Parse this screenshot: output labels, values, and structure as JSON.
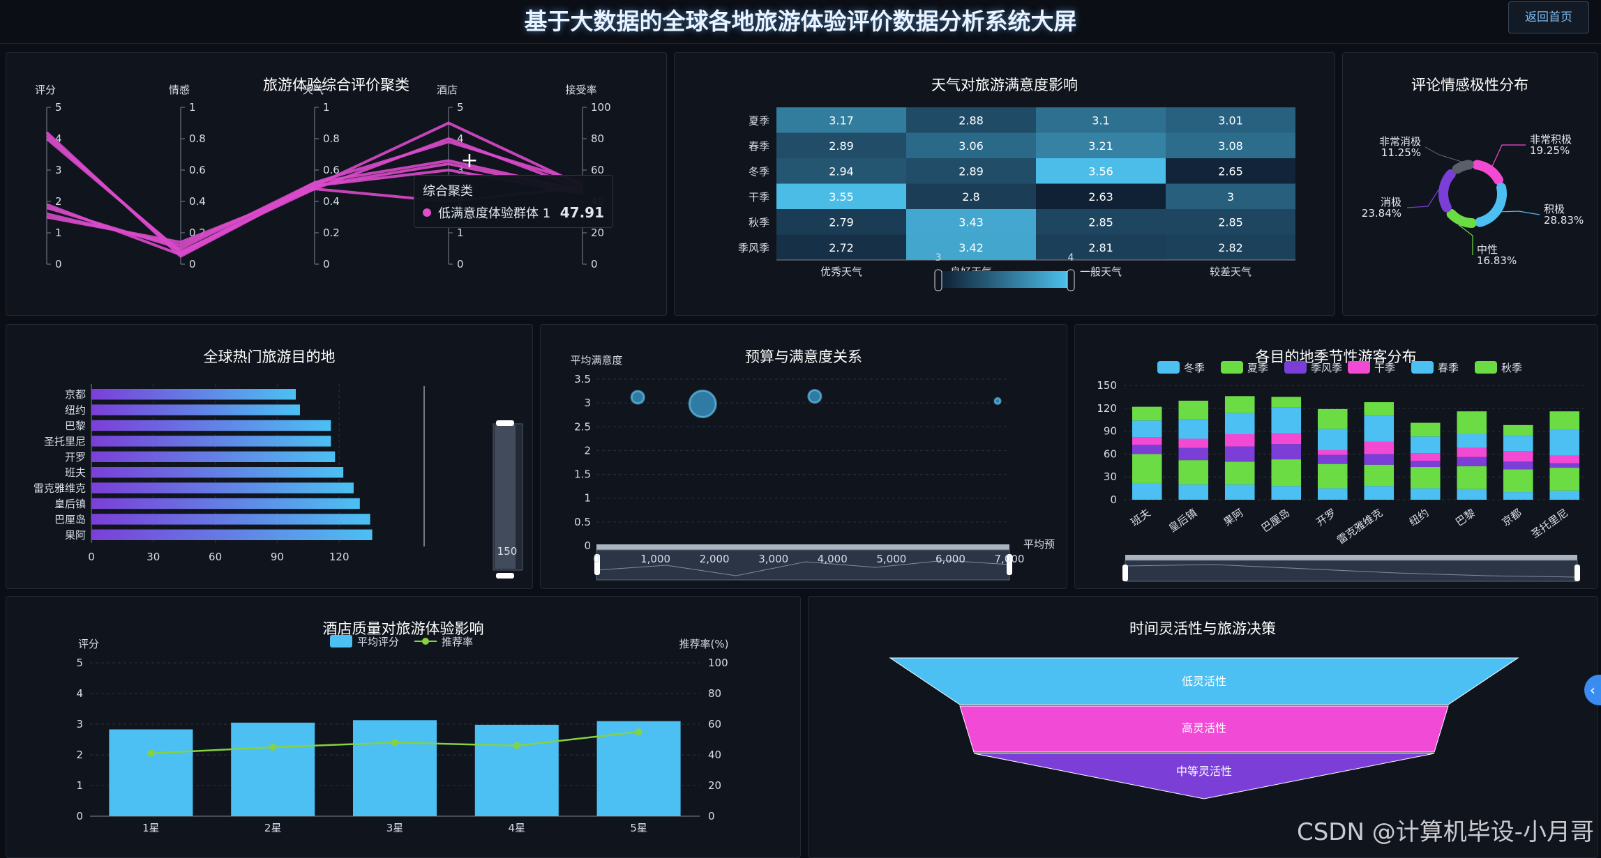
{
  "header": {
    "title": "基于大数据的全球各地旅游体验评价数据分析系统大屏",
    "back_label": "返回首页"
  },
  "watermark": "CSDN @计算机毕设-小月哥",
  "colors": {
    "cyan": "#4cc0f2",
    "green": "#6cdc45",
    "purple": "#7b3fd8",
    "pink": "#f24ad3",
    "bg": "#10141c"
  },
  "panels": {
    "parallel": {
      "title": "旅游体验综合评价聚类",
      "tooltip": {
        "title": "综合聚类",
        "name": "低满意度体验群体 1",
        "value": "47.91"
      },
      "chart_data": {
        "type": "parallel",
        "axes": [
          {
            "name": "评分",
            "min": 0,
            "max": 5,
            "ticks": [
              "0",
              "1",
              "2",
              "3",
              "4",
              "5"
            ]
          },
          {
            "name": "情感",
            "min": 0,
            "max": 1,
            "ticks": [
              "0",
              "0.2",
              "0.4",
              "0.6",
              "0.8",
              "1"
            ]
          },
          {
            "name": "天气",
            "min": 0,
            "max": 1,
            "ticks": [
              "0",
              "0.2",
              "0.4",
              "0.6",
              "0.8",
              "1"
            ]
          },
          {
            "name": "酒店",
            "min": 0,
            "max": 5,
            "ticks": [
              "0",
              "1",
              "2",
              "3",
              "4",
              "5"
            ]
          },
          {
            "name": "接受率",
            "min": 0,
            "max": 100,
            "ticks": [
              "0",
              "20",
              "40",
              "60",
              "80",
              "100"
            ]
          }
        ],
        "lines": [
          [
            4.2,
            0.05,
            0.5,
            4.5,
            50
          ],
          [
            4.1,
            0.07,
            0.52,
            3.9,
            52
          ],
          [
            4.0,
            0.08,
            0.48,
            4.0,
            48
          ],
          [
            1.8,
            0.1,
            0.52,
            3.3,
            47
          ],
          [
            1.6,
            0.12,
            0.5,
            3.2,
            46
          ],
          [
            1.5,
            0.14,
            0.48,
            2.0,
            49
          ],
          [
            1.9,
            0.06,
            0.5,
            3.0,
            45
          ]
        ]
      }
    },
    "heatmap": {
      "title": "天气对旅游满意度影响",
      "visual_map": {
        "min_label": "3",
        "max_label": "4"
      },
      "chart_data": {
        "type": "heatmap",
        "x": [
          "优秀天气",
          "良好天气",
          "一般天气",
          "较差天气"
        ],
        "y": [
          "夏季",
          "春季",
          "冬季",
          "干季",
          "秋季",
          "季风季"
        ],
        "values": [
          [
            3.17,
            2.88,
            3.1,
            3.01
          ],
          [
            2.89,
            3.06,
            3.21,
            3.08
          ],
          [
            2.94,
            2.89,
            3.56,
            2.65
          ],
          [
            3.55,
            2.8,
            2.63,
            3
          ],
          [
            2.79,
            3.43,
            2.85,
            2.85
          ],
          [
            2.72,
            3.42,
            2.81,
            2.82
          ]
        ]
      }
    },
    "donut": {
      "title": "评论情感极性分布",
      "chart_data": {
        "type": "pie",
        "slices": [
          {
            "name": "非常积极",
            "percent": "19.25%",
            "value": 19.25,
            "color": "#f24ad3"
          },
          {
            "name": "积极",
            "percent": "28.83%",
            "value": 28.83,
            "color": "#4cc0f2"
          },
          {
            "name": "中性",
            "percent": "16.83%",
            "value": 16.83,
            "color": "#6cdc45"
          },
          {
            "name": "消极",
            "percent": "23.84%",
            "value": 23.84,
            "color": "#7b3fd8"
          },
          {
            "name": "非常消极",
            "percent": "11.25%",
            "value": 11.25,
            "color": "#5a5f69"
          }
        ]
      }
    },
    "hotbar": {
      "title": "全球热门旅游目的地",
      "slider_label": "150",
      "chart_data": {
        "type": "bar",
        "categories": [
          "京都",
          "纽约",
          "巴黎",
          "圣托里尼",
          "开罗",
          "班夫",
          "雷克雅维克",
          "皇后镇",
          "巴厘岛",
          "果阿"
        ],
        "values": [
          99,
          101,
          116,
          116,
          118,
          122,
          127,
          130,
          135,
          136
        ],
        "xlim": [
          0,
          150
        ],
        "xticks": [
          "0",
          "30",
          "60",
          "90",
          "120"
        ]
      }
    },
    "scatter": {
      "title": "预算与满意度关系",
      "chart_data": {
        "type": "scatter",
        "ylabel": "平均满意度",
        "xlabel": "平均预",
        "yticks": [
          "0",
          "0.5",
          "1",
          "1.5",
          "2",
          "2.5",
          "3",
          "3.5"
        ],
        "xticks": [
          "0",
          "1,000",
          "2,000",
          "3,000",
          "4,000",
          "5,000",
          "6,000",
          "7,000"
        ],
        "xlim": [
          0,
          7000
        ],
        "ylim": [
          0,
          3.5
        ],
        "points": [
          {
            "x": 700,
            "y": 3.12,
            "size": 9
          },
          {
            "x": 1800,
            "y": 2.98,
            "size": 19
          },
          {
            "x": 3700,
            "y": 3.14,
            "size": 9
          },
          {
            "x": 6800,
            "y": 3.04,
            "size": 4
          }
        ]
      }
    },
    "stacked": {
      "title": "各目的地季节性游客分布",
      "chart_data": {
        "type": "bar",
        "stacked": true,
        "categories": [
          "班夫",
          "皇后镇",
          "果阿",
          "巴厘岛",
          "开罗",
          "雷克雅维克",
          "纽约",
          "巴黎",
          "京都",
          "圣托里尼"
        ],
        "yticks": [
          "0",
          "30",
          "60",
          "90",
          "120",
          "150"
        ],
        "ylim": [
          0,
          150
        ],
        "series": [
          {
            "name": "冬季",
            "color": "#4cc0f2",
            "values": [
              22,
              20,
              20,
              18,
              15,
              18,
              15,
              14,
              10,
              12
            ]
          },
          {
            "name": "夏季",
            "color": "#6cdc45",
            "values": [
              38,
              32,
              30,
              35,
              32,
              28,
              28,
              30,
              30,
              30
            ]
          },
          {
            "name": "季风季",
            "color": "#7b3fd8",
            "values": [
              12,
              16,
              20,
              20,
              12,
              14,
              8,
              12,
              10,
              6
            ]
          },
          {
            "name": "干季",
            "color": "#f24ad3",
            "values": [
              10,
              12,
              16,
              14,
              6,
              16,
              10,
              12,
              14,
              10
            ]
          },
          {
            "name": "春季",
            "color": "#4cc0f2",
            "values": [
              22,
              26,
              28,
              34,
              28,
              34,
              22,
              18,
              20,
              34
            ]
          },
          {
            "name": "秋季",
            "color": "#6cdc45",
            "values": [
              18,
              24,
              22,
              14,
              26,
              18,
              18,
              30,
              14,
              24
            ]
          }
        ]
      }
    },
    "hotel": {
      "title": "酒店质量对旅游体验影响",
      "chart_data": {
        "type": "bar",
        "categories": [
          "1星",
          "2星",
          "3星",
          "4星",
          "5星"
        ],
        "series": [
          {
            "name": "平均评分",
            "type": "bar",
            "values": [
              2.83,
              3.05,
              3.13,
              2.98,
              3.1
            ]
          },
          {
            "name": "推荐率",
            "type": "line",
            "values": [
              41,
              45,
              48,
              46,
              55
            ]
          }
        ],
        "ylabel": "评分",
        "ylabel2": "推荐率(%)",
        "yticks": [
          "0",
          "1",
          "2",
          "3",
          "4",
          "5"
        ],
        "yticks2": [
          "0",
          "20",
          "40",
          "60",
          "80",
          "100"
        ],
        "ylim": [
          0,
          5
        ],
        "ylim2": [
          0,
          100
        ]
      }
    },
    "funnel": {
      "title": "时间灵活性与旅游决策",
      "chart_data": {
        "type": "funnel",
        "stages": [
          {
            "name": "低灵活性",
            "color": "#4cc0f2"
          },
          {
            "name": "高灵活性",
            "color": "#f04ad6"
          },
          {
            "name": "中等灵活性",
            "color": "#7b3fd8"
          }
        ]
      }
    }
  }
}
